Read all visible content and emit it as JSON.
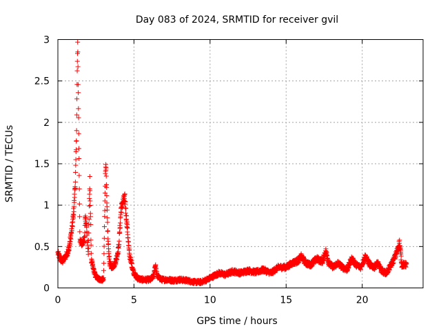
{
  "chart_data": {
    "type": "scatter",
    "title": "Day 083 of 2024, SRMTID for receiver gvil",
    "xlabel": "GPS time / hours",
    "ylabel": "SRMTID / TECUs",
    "xlim": [
      0,
      24
    ],
    "ylim": [
      0,
      3
    ],
    "x_ticks": [
      0,
      5,
      10,
      15,
      20
    ],
    "x_tick_labels": [
      "0",
      "5",
      "10",
      "15",
      "20"
    ],
    "y_ticks": [
      0,
      0.5,
      1,
      1.5,
      2,
      2.5,
      3
    ],
    "y_tick_labels": [
      "0",
      "0.5",
      "1",
      "1.5",
      "2",
      "2.5",
      "3"
    ],
    "grid": true,
    "marker": "plus",
    "series": [
      {
        "name": "SRMTID",
        "color": "#ff0000",
        "profile": {
          "x": [
            0.0,
            0.15,
            0.3,
            0.5,
            0.7,
            0.85,
            0.95,
            1.05,
            1.15,
            1.22,
            1.27,
            1.3,
            1.35,
            1.45,
            1.6,
            1.75,
            1.8,
            1.9,
            2.0,
            2.1,
            2.2,
            2.3,
            2.45,
            2.6,
            2.8,
            3.0,
            3.05,
            3.1,
            3.15,
            3.22,
            3.3,
            3.4,
            3.55,
            3.7,
            3.85,
            4.0,
            4.15,
            4.3,
            4.4,
            4.48,
            4.55,
            4.7,
            4.85,
            5.0,
            5.2,
            5.5,
            5.8,
            6.1,
            6.3,
            6.4,
            6.5,
            6.8,
            7.2,
            7.6,
            8.0,
            8.5,
            9.0,
            9.4,
            9.8,
            10.2,
            10.6,
            11.0,
            11.5,
            12.0,
            12.5,
            13.0,
            13.5,
            14.0,
            14.5,
            15.0,
            15.4,
            15.8,
            16.0,
            16.3,
            16.6,
            17.0,
            17.4,
            17.6,
            17.8,
            18.1,
            18.4,
            18.7,
            19.0,
            19.3,
            19.6,
            19.9,
            20.2,
            20.5,
            20.8,
            21.0,
            21.3,
            21.6,
            21.9,
            22.1,
            22.3,
            22.45,
            22.6,
            22.9
          ],
          "y": [
            0.42,
            0.35,
            0.32,
            0.38,
            0.45,
            0.62,
            0.75,
            0.95,
            1.3,
            1.8,
            2.6,
            2.95,
            2.2,
            0.55,
            0.55,
            0.58,
            0.86,
            0.7,
            0.4,
            1.3,
            0.33,
            0.25,
            0.15,
            0.12,
            0.1,
            0.1,
            0.6,
            1.2,
            1.55,
            1.0,
            0.55,
            0.3,
            0.25,
            0.28,
            0.35,
            0.5,
            0.95,
            1.05,
            1.08,
            0.9,
            0.75,
            0.4,
            0.28,
            0.18,
            0.12,
            0.1,
            0.1,
            0.1,
            0.15,
            0.28,
            0.15,
            0.1,
            0.1,
            0.09,
            0.1,
            0.09,
            0.07,
            0.07,
            0.1,
            0.14,
            0.18,
            0.16,
            0.2,
            0.18,
            0.21,
            0.19,
            0.22,
            0.18,
            0.25,
            0.25,
            0.3,
            0.33,
            0.38,
            0.3,
            0.28,
            0.35,
            0.32,
            0.45,
            0.3,
            0.25,
            0.3,
            0.25,
            0.22,
            0.35,
            0.28,
            0.25,
            0.38,
            0.28,
            0.25,
            0.3,
            0.2,
            0.18,
            0.28,
            0.35,
            0.45,
            0.55,
            0.28,
            0.28
          ]
        }
      }
    ]
  }
}
